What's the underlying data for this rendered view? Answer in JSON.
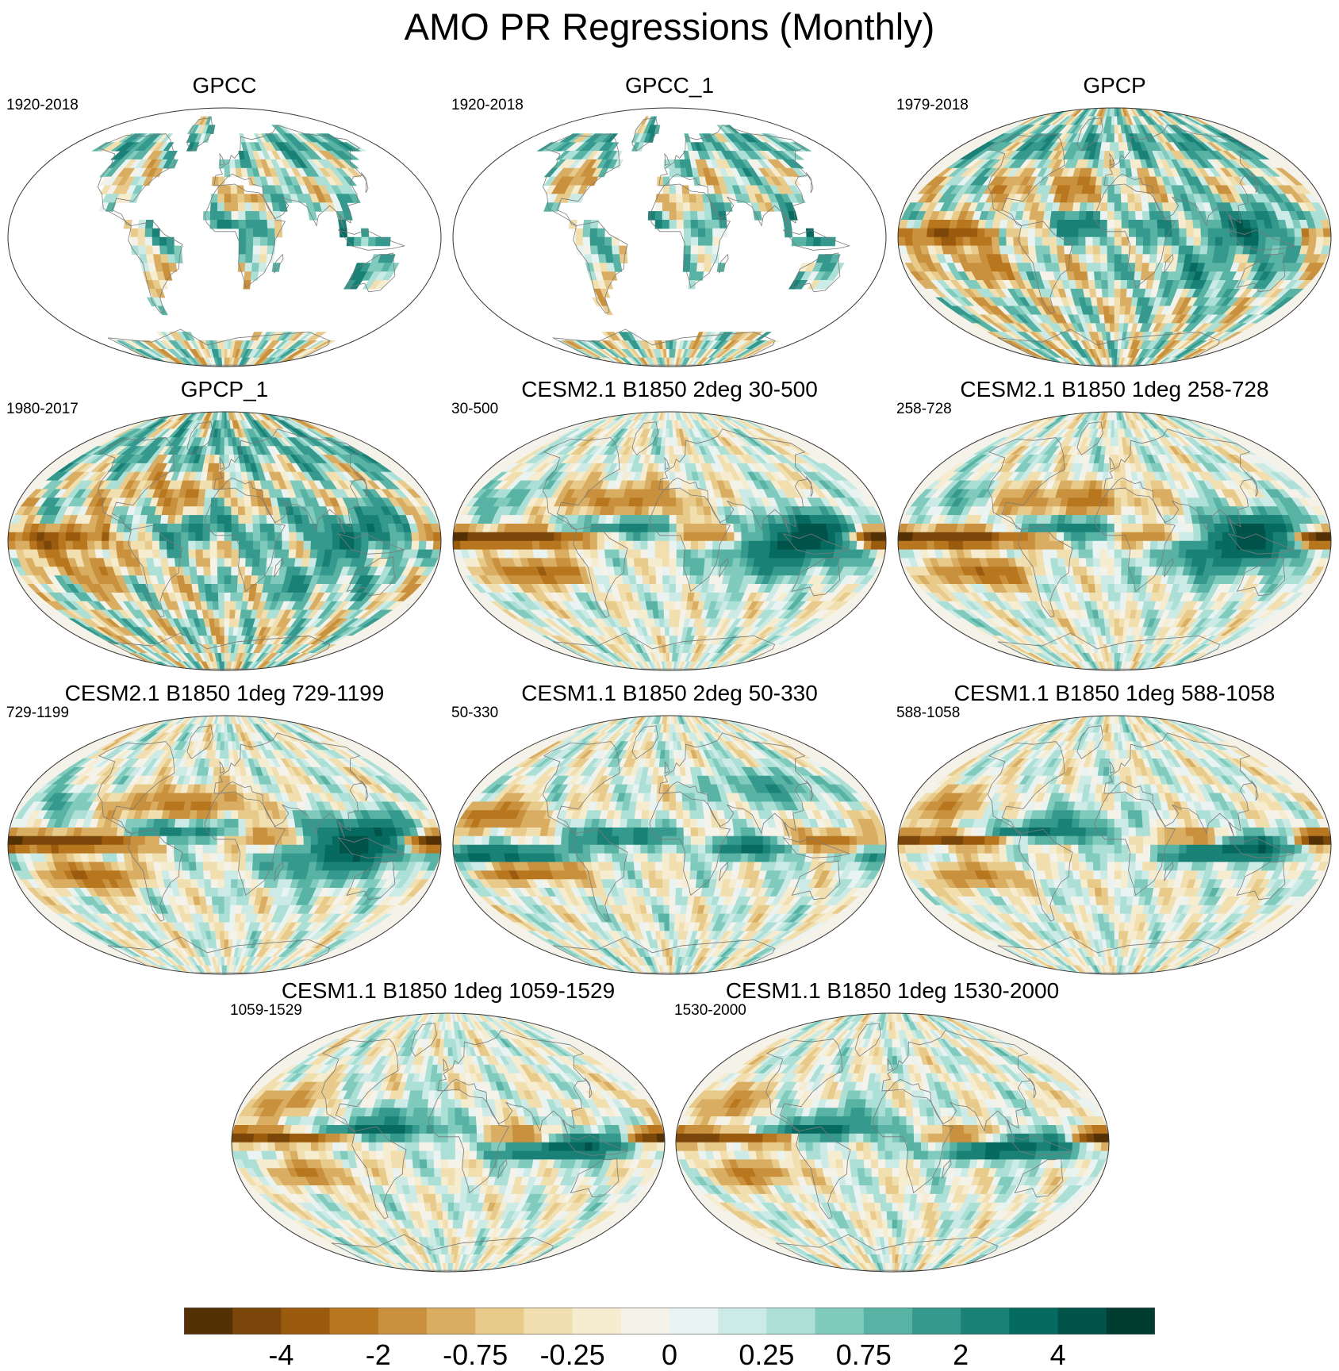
{
  "figure_title": "AMO PR Regressions (Monthly)",
  "chart_data": {
    "type": "heatmap",
    "projection": "Robinson-like global map",
    "variable": "PR regressions",
    "panels": [
      {
        "title": "GPCC",
        "period": "1920-2018",
        "coverage": "land-only",
        "pattern": "obs_land"
      },
      {
        "title": "GPCC_1",
        "period": "1920-2018",
        "coverage": "land-only",
        "pattern": "obs_land"
      },
      {
        "title": "GPCP",
        "period": "1979-2018",
        "coverage": "global",
        "pattern": "obs_global"
      },
      {
        "title": "GPCP_1",
        "period": "1980-2017",
        "coverage": "global",
        "pattern": "obs_global"
      },
      {
        "title": "CESM2.1 B1850 2deg 30-500",
        "period": "30-500",
        "coverage": "global",
        "pattern": "model_strong"
      },
      {
        "title": "CESM2.1 B1850 1deg 258-728",
        "period": "258-728",
        "coverage": "global",
        "pattern": "model_strong"
      },
      {
        "title": "CESM2.1 B1850 1deg 729-1199",
        "period": "729-1199",
        "coverage": "global",
        "pattern": "model_strong"
      },
      {
        "title": "CESM1.1 B1850 2deg 50-330",
        "period": "50-330",
        "coverage": "global",
        "pattern": "model_cesm1_2deg"
      },
      {
        "title": "CESM1.1 B1850 1deg 588-1058",
        "period": "588-1058",
        "coverage": "global",
        "pattern": "model_cesm1"
      },
      {
        "title": "CESM1.1 B1850 1deg 1059-1529",
        "period": "1059-1529",
        "coverage": "global",
        "pattern": "model_cesm1"
      },
      {
        "title": "CESM1.1 B1850 1deg 1530-2000",
        "period": "1530-2000",
        "coverage": "global",
        "pattern": "model_cesm1"
      }
    ],
    "colorbar": {
      "colors": [
        "#543005",
        "#7a4609",
        "#9a5b0f",
        "#b8761f",
        "#c9913d",
        "#d9ae63",
        "#e8cb8b",
        "#f2dfb0",
        "#f6ecd0",
        "#f5f2ea",
        "#e9f3f1",
        "#cdebe6",
        "#ace0d6",
        "#80cbbd",
        "#58b3a5",
        "#35998e",
        "#1a8177",
        "#066a60",
        "#005349",
        "#003c30"
      ],
      "ticks": [
        {
          "label": "-4",
          "boundary": 2
        },
        {
          "label": "-2",
          "boundary": 4
        },
        {
          "label": "-0.75",
          "boundary": 6
        },
        {
          "label": "-0.25",
          "boundary": 8
        },
        {
          "label": "0",
          "boundary": 10
        },
        {
          "label": "0.25",
          "boundary": 12
        },
        {
          "label": "0.75",
          "boundary": 14
        },
        {
          "label": "2",
          "boundary": 16
        },
        {
          "label": "4",
          "boundary": 18
        }
      ]
    }
  }
}
